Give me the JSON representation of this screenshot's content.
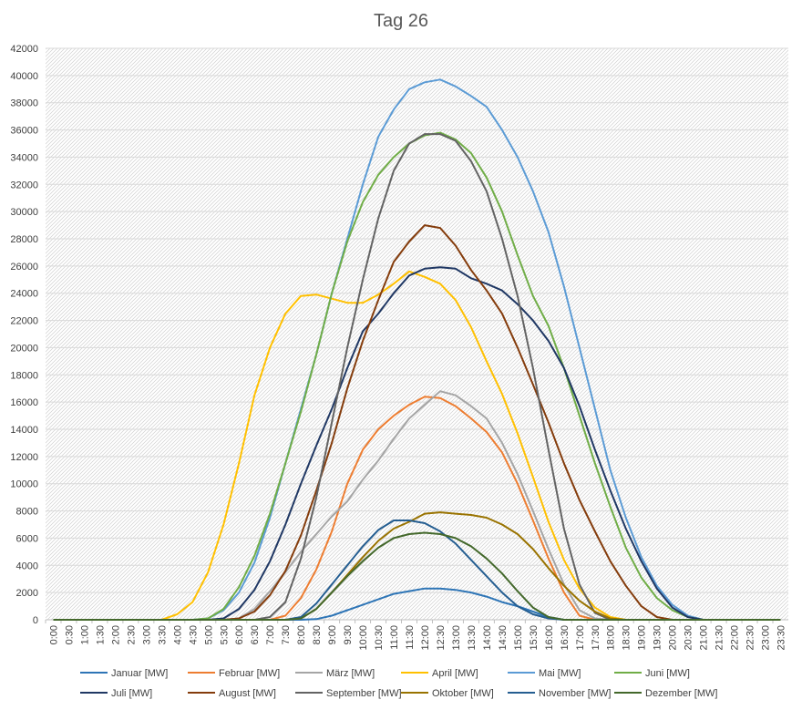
{
  "chart_data": {
    "type": "line",
    "title": "Tag 26",
    "xlabel": "",
    "ylabel": "",
    "ylim": [
      0,
      42000
    ],
    "yticks": [
      0,
      2000,
      4000,
      6000,
      8000,
      10000,
      12000,
      14000,
      16000,
      18000,
      20000,
      22000,
      24000,
      26000,
      28000,
      30000,
      32000,
      34000,
      36000,
      38000,
      40000,
      42000
    ],
    "x": [
      "0:00",
      "0:30",
      "1:00",
      "1:30",
      "2:00",
      "2:30",
      "3:00",
      "3:30",
      "4:00",
      "4:30",
      "5:00",
      "5:30",
      "6:00",
      "6:30",
      "7:00",
      "7:30",
      "8:00",
      "8:30",
      "9:00",
      "9:30",
      "10:00",
      "10:30",
      "11:00",
      "11:30",
      "12:00",
      "12:30",
      "13:00",
      "13:30",
      "14:00",
      "14:30",
      "15:00",
      "15:30",
      "16:00",
      "16:30",
      "17:00",
      "17:30",
      "18:00",
      "18:30",
      "19:00",
      "19:30",
      "20:00",
      "20:30",
      "21:00",
      "21:30",
      "22:00",
      "22:30",
      "23:00",
      "23:30"
    ],
    "grid": true,
    "legend_position": "bottom",
    "series": [
      {
        "name": "Januar [MW]",
        "color": "#2e75b6",
        "values": [
          0,
          0,
          0,
          0,
          0,
          0,
          0,
          0,
          0,
          0,
          0,
          0,
          0,
          0,
          0,
          0,
          0,
          50,
          300,
          700,
          1100,
          1500,
          1900,
          2100,
          2300,
          2300,
          2200,
          2000,
          1700,
          1300,
          1000,
          600,
          200,
          0,
          0,
          0,
          0,
          0,
          0,
          0,
          0,
          0,
          0,
          0,
          0,
          0,
          0,
          0
        ]
      },
      {
        "name": "Februar [MW]",
        "color": "#ed7d31",
        "values": [
          0,
          0,
          0,
          0,
          0,
          0,
          0,
          0,
          0,
          0,
          0,
          0,
          0,
          0,
          0,
          300,
          1600,
          3700,
          6500,
          10000,
          12500,
          14000,
          15000,
          15800,
          16400,
          16300,
          15700,
          14800,
          13800,
          12300,
          10000,
          7300,
          4500,
          2000,
          300,
          0,
          0,
          0,
          0,
          0,
          0,
          0,
          0,
          0,
          0,
          0,
          0,
          0
        ]
      },
      {
        "name": "März [MW]",
        "color": "#a5a5a5",
        "values": [
          0,
          0,
          0,
          0,
          0,
          0,
          0,
          0,
          0,
          0,
          0,
          0,
          100,
          800,
          2100,
          3500,
          5000,
          6300,
          7600,
          8700,
          10300,
          11700,
          13300,
          14800,
          15800,
          16800,
          16500,
          15700,
          14800,
          13000,
          10700,
          8000,
          5200,
          2600,
          700,
          100,
          0,
          0,
          0,
          0,
          0,
          0,
          0,
          0,
          0,
          0,
          0,
          0
        ]
      },
      {
        "name": "April [MW]",
        "color": "#ffc000",
        "values": [
          0,
          0,
          0,
          0,
          0,
          0,
          0,
          0,
          400,
          1300,
          3500,
          7000,
          11500,
          16500,
          20000,
          22500,
          23800,
          23900,
          23600,
          23300,
          23300,
          23900,
          24700,
          25600,
          25200,
          24700,
          23500,
          21500,
          19000,
          16600,
          13700,
          10500,
          7200,
          4400,
          2300,
          900,
          200,
          0,
          0,
          0,
          0,
          0,
          0,
          0,
          0,
          0,
          0,
          0
        ]
      },
      {
        "name": "Mai [MW]",
        "color": "#5b9bd5",
        "values": [
          0,
          0,
          0,
          0,
          0,
          0,
          0,
          0,
          0,
          0,
          100,
          700,
          2000,
          4200,
          7500,
          11500,
          15500,
          19500,
          24000,
          28000,
          32000,
          35500,
          37500,
          39000,
          39500,
          39700,
          39200,
          38500,
          37700,
          36000,
          34000,
          31500,
          28500,
          24500,
          20000,
          15500,
          11000,
          7500,
          4600,
          2500,
          1100,
          300,
          0,
          0,
          0,
          0,
          0,
          0
        ]
      },
      {
        "name": "Juni [MW]",
        "color": "#70ad47",
        "values": [
          0,
          0,
          0,
          0,
          0,
          0,
          0,
          0,
          0,
          0,
          100,
          800,
          2400,
          4700,
          7800,
          11500,
          15300,
          19500,
          24000,
          27800,
          30700,
          32700,
          34000,
          35000,
          35600,
          35800,
          35300,
          34300,
          32500,
          30000,
          26800,
          23800,
          21600,
          18500,
          15000,
          11500,
          8300,
          5300,
          3100,
          1600,
          700,
          200,
          0,
          0,
          0,
          0,
          0,
          0
        ]
      },
      {
        "name": "Juli [MW]",
        "color": "#203864",
        "values": [
          0,
          0,
          0,
          0,
          0,
          0,
          0,
          0,
          0,
          0,
          0,
          100,
          800,
          2200,
          4300,
          7000,
          10000,
          12800,
          15500,
          18500,
          21200,
          22500,
          24000,
          25300,
          25800,
          25900,
          25800,
          25100,
          24700,
          24200,
          23200,
          22000,
          20500,
          18500,
          15700,
          12500,
          9500,
          6700,
          4300,
          2300,
          900,
          200,
          0,
          0,
          0,
          0,
          0,
          0
        ]
      },
      {
        "name": "August [MW]",
        "color": "#843c0c",
        "values": [
          0,
          0,
          0,
          0,
          0,
          0,
          0,
          0,
          0,
          0,
          0,
          0,
          100,
          600,
          1800,
          3600,
          6200,
          9500,
          13000,
          17000,
          20500,
          23500,
          26300,
          27800,
          29000,
          28800,
          27500,
          25700,
          24200,
          22500,
          20000,
          17300,
          14500,
          11500,
          8800,
          6500,
          4300,
          2500,
          1000,
          200,
          0,
          0,
          0,
          0,
          0,
          0,
          0,
          0
        ]
      },
      {
        "name": "September [MW]",
        "color": "#636363",
        "values": [
          0,
          0,
          0,
          0,
          0,
          0,
          0,
          0,
          0,
          0,
          0,
          0,
          0,
          0,
          200,
          1300,
          4500,
          9000,
          14500,
          20000,
          25000,
          29500,
          33000,
          35000,
          35700,
          35700,
          35200,
          33700,
          31500,
          28000,
          23800,
          18500,
          12500,
          6700,
          2600,
          500,
          0,
          0,
          0,
          0,
          0,
          0,
          0,
          0,
          0,
          0,
          0,
          0
        ]
      },
      {
        "name": "Oktober [MW]",
        "color": "#997300",
        "values": [
          0,
          0,
          0,
          0,
          0,
          0,
          0,
          0,
          0,
          0,
          0,
          0,
          0,
          0,
          0,
          0,
          100,
          800,
          2000,
          3300,
          4600,
          5800,
          6700,
          7200,
          7800,
          7900,
          7800,
          7700,
          7500,
          7000,
          6300,
          5200,
          3800,
          2500,
          1400,
          600,
          100,
          0,
          0,
          0,
          0,
          0,
          0,
          0,
          0,
          0,
          0,
          0
        ]
      },
      {
        "name": "November [MW]",
        "color": "#255e91",
        "values": [
          0,
          0,
          0,
          0,
          0,
          0,
          0,
          0,
          0,
          0,
          0,
          0,
          0,
          0,
          0,
          0,
          200,
          1200,
          2600,
          4000,
          5400,
          6600,
          7300,
          7300,
          7100,
          6500,
          5600,
          4400,
          3200,
          2000,
          1000,
          400,
          100,
          0,
          0,
          0,
          0,
          0,
          0,
          0,
          0,
          0,
          0,
          0,
          0,
          0,
          0,
          0
        ]
      },
      {
        "name": "Dezember [MW]",
        "color": "#43682b",
        "values": [
          0,
          0,
          0,
          0,
          0,
          0,
          0,
          0,
          0,
          0,
          0,
          0,
          0,
          0,
          0,
          0,
          100,
          800,
          2000,
          3200,
          4300,
          5300,
          6000,
          6300,
          6400,
          6300,
          6000,
          5400,
          4500,
          3400,
          2100,
          900,
          200,
          0,
          0,
          0,
          0,
          0,
          0,
          0,
          0,
          0,
          0,
          0,
          0,
          0,
          0,
          0
        ]
      }
    ]
  }
}
